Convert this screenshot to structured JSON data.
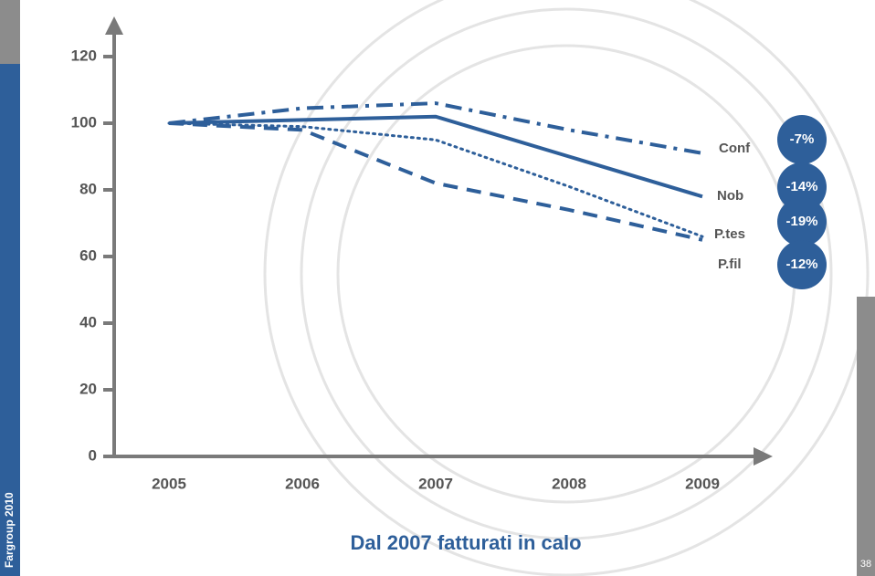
{
  "chart_data": {
    "type": "line",
    "caption": "Dal 2007 fatturati in calo",
    "footer": "Fargroup 2010",
    "page_number": "38",
    "categories": [
      "2005",
      "2006",
      "2007",
      "2008",
      "2009"
    ],
    "ylim": [
      0,
      120
    ],
    "yticks": [
      0,
      20,
      40,
      60,
      80,
      100,
      120
    ],
    "series": [
      {
        "name": "Conf",
        "color": "#2e5f9a",
        "style": "dashdot",
        "values": [
          100,
          104.5,
          106,
          98,
          91
        ],
        "change": -7,
        "change_label": "-7%"
      },
      {
        "name": "Nob",
        "color": "#2e5f9a",
        "style": "solid",
        "values": [
          100,
          101,
          102,
          90,
          78
        ],
        "change": -14,
        "change_label": "-14%"
      },
      {
        "name": "P.tes",
        "color": "#2e5f9a",
        "style": "dotted",
        "values": [
          100,
          99,
          95,
          81,
          66
        ],
        "change": -19,
        "change_label": "-19%"
      },
      {
        "name": "P.fil",
        "color": "#2e5f9a",
        "style": "dashed",
        "values": [
          100,
          98,
          82,
          74,
          65
        ],
        "change": -12,
        "change_label": "-12%"
      }
    ]
  }
}
